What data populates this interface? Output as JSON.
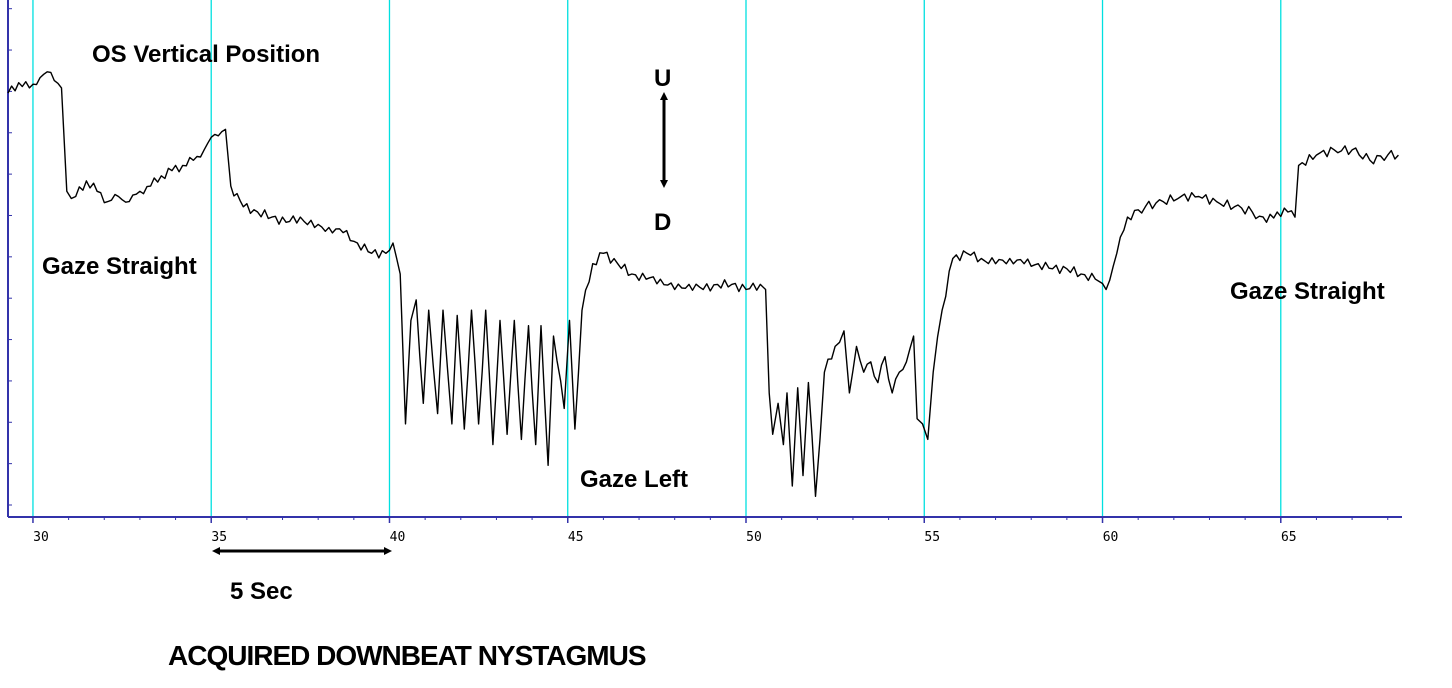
{
  "chart_data": {
    "type": "line",
    "title": "OS Vertical Position",
    "xlabel": "",
    "ylabel": "",
    "xlim": [
      29.3,
      68.4
    ],
    "ylim": [
      0,
      100
    ],
    "x_ticks": [
      30,
      35,
      40,
      45,
      50,
      55,
      60,
      65
    ],
    "grid": {
      "vertical_lines_at_ticks": true,
      "color": "#00e0e0"
    },
    "series": [
      {
        "color": "#000000",
        "points": [
          [
            29.3,
            82
          ],
          [
            29.6,
            84
          ],
          [
            29.9,
            83
          ],
          [
            30.2,
            85
          ],
          [
            30.5,
            86
          ],
          [
            30.8,
            83
          ],
          [
            30.95,
            63
          ],
          [
            31.2,
            62
          ],
          [
            31.5,
            65
          ],
          [
            31.8,
            63
          ],
          [
            32.1,
            61
          ],
          [
            32.4,
            62
          ],
          [
            32.7,
            61
          ],
          [
            33.0,
            63
          ],
          [
            33.3,
            64
          ],
          [
            33.6,
            66
          ],
          [
            33.9,
            67
          ],
          [
            34.2,
            68
          ],
          [
            34.5,
            69
          ],
          [
            34.8,
            71
          ],
          [
            35.1,
            74
          ],
          [
            35.4,
            75
          ],
          [
            35.55,
            64
          ],
          [
            35.9,
            60
          ],
          [
            36.3,
            59
          ],
          [
            36.7,
            58
          ],
          [
            37.1,
            57
          ],
          [
            37.5,
            58
          ],
          [
            37.9,
            56
          ],
          [
            38.3,
            56
          ],
          [
            38.7,
            55
          ],
          [
            39.1,
            53
          ],
          [
            39.5,
            51
          ],
          [
            39.9,
            51
          ],
          [
            40.1,
            53
          ],
          [
            40.3,
            47
          ],
          [
            40.45,
            18
          ],
          [
            40.6,
            38
          ],
          [
            40.75,
            42
          ],
          [
            40.95,
            22
          ],
          [
            41.1,
            40
          ],
          [
            41.35,
            20
          ],
          [
            41.5,
            40
          ],
          [
            41.75,
            18
          ],
          [
            41.9,
            39
          ],
          [
            42.1,
            17
          ],
          [
            42.3,
            40
          ],
          [
            42.5,
            18
          ],
          [
            42.7,
            40
          ],
          [
            42.9,
            14
          ],
          [
            43.1,
            38
          ],
          [
            43.3,
            16
          ],
          [
            43.5,
            38
          ],
          [
            43.7,
            15
          ],
          [
            43.9,
            37
          ],
          [
            44.1,
            14
          ],
          [
            44.25,
            37
          ],
          [
            44.45,
            10
          ],
          [
            44.6,
            35
          ],
          [
            44.9,
            21
          ],
          [
            45.05,
            38
          ],
          [
            45.2,
            17
          ],
          [
            45.4,
            40
          ],
          [
            45.7,
            49
          ],
          [
            46.0,
            51
          ],
          [
            46.4,
            49
          ],
          [
            46.8,
            47
          ],
          [
            47.2,
            46
          ],
          [
            47.6,
            46
          ],
          [
            48.0,
            44
          ],
          [
            48.4,
            45
          ],
          [
            48.8,
            44
          ],
          [
            49.2,
            45
          ],
          [
            49.6,
            45
          ],
          [
            50.0,
            44
          ],
          [
            50.4,
            45
          ],
          [
            50.55,
            44
          ],
          [
            50.65,
            24
          ],
          [
            50.75,
            16
          ],
          [
            50.9,
            22
          ],
          [
            51.05,
            14
          ],
          [
            51.15,
            24
          ],
          [
            51.3,
            6
          ],
          [
            51.45,
            25
          ],
          [
            51.6,
            8
          ],
          [
            51.75,
            26
          ],
          [
            51.95,
            4
          ],
          [
            52.2,
            28
          ],
          [
            52.5,
            33
          ],
          [
            52.75,
            36
          ],
          [
            52.9,
            24
          ],
          [
            53.1,
            33
          ],
          [
            53.3,
            28
          ],
          [
            53.5,
            30
          ],
          [
            53.7,
            26
          ],
          [
            53.9,
            31
          ],
          [
            54.1,
            24
          ],
          [
            54.3,
            28
          ],
          [
            54.5,
            30
          ],
          [
            54.7,
            35
          ],
          [
            54.8,
            19
          ],
          [
            54.95,
            18
          ],
          [
            55.1,
            15
          ],
          [
            55.25,
            28
          ],
          [
            55.5,
            40
          ],
          [
            55.8,
            50
          ],
          [
            56.2,
            51
          ],
          [
            56.6,
            50
          ],
          [
            57.0,
            49
          ],
          [
            57.4,
            50
          ],
          [
            57.8,
            49
          ],
          [
            58.2,
            49
          ],
          [
            58.6,
            48
          ],
          [
            59.0,
            48
          ],
          [
            59.4,
            47
          ],
          [
            59.8,
            46
          ],
          [
            60.1,
            44
          ],
          [
            60.4,
            51
          ],
          [
            60.7,
            58
          ],
          [
            61.2,
            60
          ],
          [
            61.7,
            61
          ],
          [
            62.2,
            62
          ],
          [
            62.7,
            62
          ],
          [
            63.2,
            61
          ],
          [
            63.7,
            60
          ],
          [
            64.2,
            59
          ],
          [
            64.6,
            57
          ],
          [
            64.9,
            59
          ],
          [
            65.2,
            59
          ],
          [
            65.4,
            58
          ],
          [
            65.5,
            68
          ],
          [
            66.0,
            70
          ],
          [
            66.5,
            71
          ],
          [
            67.0,
            71
          ],
          [
            67.5,
            69
          ],
          [
            68.0,
            70
          ],
          [
            68.3,
            70
          ]
        ]
      }
    ]
  },
  "annotations": {
    "gaze_straight_left": "Gaze Straight",
    "gaze_left": "Gaze Left",
    "gaze_straight_right": "Gaze Straight",
    "up_label": "U",
    "down_label": "D",
    "scale_label": "5 Sec"
  },
  "caption": "ACQUIRED DOWNBEAT NYSTAGMUS"
}
